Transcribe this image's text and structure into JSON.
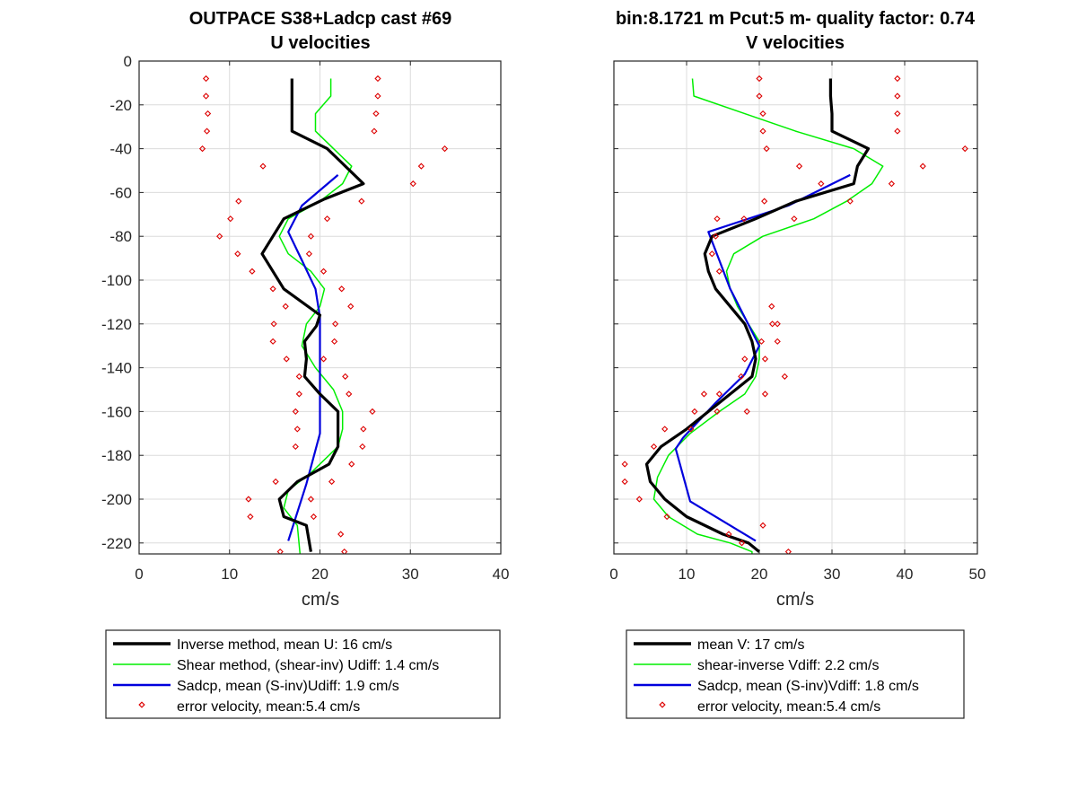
{
  "left_title": [
    "OUTPACE S38+Ladcp cast #69",
    "U velocities"
  ],
  "right_title": [
    "bin:8.1721 m  Pcut:5 m- quality factor:  0.74",
    "V velocities"
  ],
  "legend_left": [
    "Inverse method, mean U:  16 cm/s",
    "Shear method, (shear-inv)  Udiff:  1.4 cm/s",
    "Sadcp, mean (S-inv)Udiff: 1.9 cm/s",
    "error velocity, mean:5.4 cm/s"
  ],
  "legend_right": [
    "mean V:  17 cm/s",
    "shear-inverse Vdiff:  2.2 cm/s",
    "Sadcp, mean (S-inv)Vdiff: 1.8 cm/s",
    "error velocity, mean:5.4 cm/s"
  ],
  "colors": {
    "inverse": "#000000",
    "shear": "#00ee00",
    "sadcp": "#0000dd",
    "error": "#dd0000",
    "grid": "#dcdcdc"
  },
  "chart_data": [
    {
      "type": "line",
      "title": "OUTPACE S38+Ladcp cast #69 / U velocities",
      "xlabel": "cm/s",
      "ylabel": "",
      "xlim": [
        0,
        40
      ],
      "ylim": [
        -225,
        0
      ],
      "xticks": [
        0,
        10,
        20,
        30,
        40
      ],
      "yticks": [
        0,
        -20,
        -40,
        -60,
        -80,
        -100,
        -120,
        -140,
        -160,
        -180,
        -200,
        -220
      ],
      "grid": true,
      "series": [
        {
          "name": "Inverse method, mean U:  16 cm/s",
          "style": "thick",
          "x": [
            16.9,
            16.9,
            16.9,
            20.8,
            24.8,
            20.5,
            16.0,
            13.6,
            16.0,
            20.0,
            19.6,
            18.3,
            18.5,
            18.3,
            20.0,
            22.0,
            22.0,
            22.0,
            21.0,
            17.5,
            15.5,
            16.0,
            18.5,
            19.0
          ],
          "y": [
            -8,
            -16,
            -32,
            -40,
            -56,
            -63,
            -72,
            -88,
            -104,
            -116,
            -121,
            -128,
            -136,
            -144,
            -152,
            -160,
            -168,
            -176,
            -184,
            -192,
            -200,
            -208,
            -212,
            -224
          ]
        },
        {
          "name": "Shear method, (shear-inv)  Udiff:  1.4 cm/s",
          "style": "thin",
          "x": [
            21.2,
            21.2,
            19.5,
            19.5,
            21.5,
            23.5,
            22.5,
            20.0,
            16.5,
            15.5,
            16.5,
            19.0,
            20.5,
            20.0,
            18.5,
            18.0,
            19.5,
            21.5,
            22.5,
            22.5,
            22.0,
            19.0,
            16.5,
            16.0,
            17.5,
            17.8
          ],
          "y": [
            -8,
            -16,
            -24,
            -32,
            -40,
            -48,
            -56,
            -64,
            -72,
            -80,
            -88,
            -96,
            -104,
            -112,
            -120,
            -130,
            -140,
            -150,
            -160,
            -168,
            -176,
            -188,
            -196,
            -204,
            -212,
            -225
          ]
        },
        {
          "name": "Sadcp, mean (S-inv)Udiff: 1.9 cm/s",
          "style": "medium",
          "x": [
            22.0,
            18.0,
            16.5,
            18.0,
            19.5,
            20.0,
            20.0,
            20.0,
            20.0,
            20.0,
            18.5,
            16.5
          ],
          "y": [
            -52,
            -66,
            -78,
            -91,
            -104,
            -117,
            -130,
            -143,
            -156,
            -170,
            -193,
            -219
          ]
        },
        {
          "name": "error velocity, mean:5.4 cm/s",
          "style": "markers",
          "x": [
            7.4,
            7.4,
            7.6,
            7.5,
            7.0,
            13.7,
            11.0,
            10.1,
            8.9,
            10.9,
            12.5,
            14.8,
            16.2,
            14.9,
            14.8,
            16.3,
            17.7,
            17.7,
            17.3,
            17.5,
            17.3,
            15.1,
            12.1,
            12.3,
            15.6,
            26.4,
            26.4,
            26.2,
            26.0,
            33.8,
            31.2,
            30.3,
            24.6,
            20.8,
            19.0,
            18.8,
            20.4,
            22.4,
            23.4,
            21.7,
            21.6,
            20.4,
            22.8,
            23.2,
            25.8,
            24.8,
            24.7,
            23.5,
            21.3,
            19.0,
            19.3,
            22.3,
            22.7
          ],
          "y": [
            -8,
            -16,
            -24,
            -32,
            -40,
            -48,
            -64,
            -72,
            -80,
            -88,
            -96,
            -104,
            -112,
            -120,
            -128,
            -136,
            -144,
            -152,
            -160,
            -168,
            -176,
            -192,
            -200,
            -208,
            -224,
            -8,
            -16,
            -24,
            -32,
            -40,
            -48,
            -56,
            -64,
            -72,
            -80,
            -88,
            -96,
            -104,
            -112,
            -120,
            -128,
            -136,
            -144,
            -152,
            -160,
            -168,
            -176,
            -184,
            -192,
            -200,
            -208,
            -216,
            -224
          ]
        }
      ]
    },
    {
      "type": "line",
      "title": "bin:8.1721 m  Pcut:5 m- quality factor:  0.74 / V velocities",
      "xlabel": "cm/s",
      "ylabel": "",
      "xlim": [
        0,
        50
      ],
      "ylim": [
        -225,
        0
      ],
      "xticks": [
        0,
        10,
        20,
        30,
        40,
        50
      ],
      "yticks": [
        0,
        -20,
        -40,
        -60,
        -80,
        -100,
        -120,
        -140,
        -160,
        -180,
        -200,
        -220
      ],
      "grid": true,
      "series": [
        {
          "name": "mean V:  17 cm/s",
          "style": "thick",
          "x": [
            29.8,
            29.8,
            30.0,
            30.0,
            35.0,
            33.5,
            33.0,
            25.0,
            19.5,
            13.5,
            12.5,
            13.0,
            14.0,
            16.0,
            18.0,
            19.0,
            19.5,
            19.0,
            16.0,
            10.0,
            6.5,
            4.5,
            5.0,
            7.0,
            10.0,
            15.0,
            18.5,
            20.0
          ],
          "y": [
            -8,
            -16,
            -24,
            -32,
            -40,
            -48,
            -56,
            -64,
            -72,
            -80,
            -88,
            -96,
            -104,
            -112,
            -120,
            -128,
            -136,
            -144,
            -152,
            -168,
            -176,
            -184,
            -192,
            -200,
            -208,
            -216,
            -220,
            -224
          ]
        },
        {
          "name": "shear-inverse Vdiff:  2.2 cm/s",
          "style": "thin",
          "x": [
            10.8,
            11.0,
            18.0,
            25.0,
            33.0,
            37.0,
            35.5,
            32.0,
            27.5,
            20.5,
            16.5,
            15.5,
            16.0,
            17.0,
            18.5,
            20.0,
            20.0,
            19.5,
            18.0,
            14.5,
            10.5,
            7.5,
            6.0,
            5.5,
            7.5,
            11.5,
            16.0,
            19.0,
            19.0
          ],
          "y": [
            -8,
            -16,
            -24,
            -32,
            -40,
            -48,
            -56,
            -64,
            -72,
            -80,
            -88,
            -96,
            -104,
            -112,
            -120,
            -128,
            -136,
            -144,
            -152,
            -160,
            -170,
            -180,
            -190,
            -200,
            -208,
            -216,
            -220,
            -224,
            -225
          ]
        },
        {
          "name": "Sadcp, mean (S-inv)Vdiff: 1.8 cm/s",
          "style": "medium",
          "x": [
            32.5,
            24.0,
            13.0,
            14.5,
            16.0,
            18.0,
            20.0,
            18.0,
            14.0,
            9.5,
            8.5,
            10.5,
            15.0,
            19.5
          ],
          "y": [
            -52,
            -66,
            -78,
            -91,
            -104,
            -117,
            -130,
            -143,
            -156,
            -172,
            -177,
            -201,
            -210,
            -219
          ]
        },
        {
          "name": "error velocity, mean:5.4 cm/s",
          "style": "markers",
          "x": [
            20.0,
            20.0,
            20.5,
            20.5,
            21.0,
            25.5,
            28.5,
            32.5,
            20.7,
            24.8,
            14.2,
            14.0,
            13.5,
            14.5,
            17.9,
            21.7,
            21.8,
            20.3,
            20.8,
            23.5,
            20.8,
            18.3,
            22.5,
            22.5,
            18.0,
            17.5,
            14.5,
            14.2,
            12.4,
            11.1,
            10.6,
            7.0,
            5.5,
            1.5,
            1.5,
            3.5,
            7.3,
            15.8,
            17.6,
            20.5,
            24.0,
            39.0,
            39.0,
            39.0,
            39.0,
            48.3,
            42.5,
            38.2
          ],
          "y": [
            -8,
            -16,
            -24,
            -32,
            -40,
            -48,
            -56,
            -64,
            -64,
            -72,
            -72,
            -80,
            -88,
            -96,
            -72,
            -112,
            -120,
            -128,
            -136,
            -144,
            -152,
            -160,
            -120,
            -128,
            -136,
            -144,
            -152,
            -160,
            -152,
            -160,
            -168,
            -168,
            -176,
            -184,
            -192,
            -200,
            -208,
            -216,
            -220,
            -212,
            -224,
            -8,
            -16,
            -24,
            -32,
            -40,
            -48,
            -56
          ]
        }
      ]
    }
  ]
}
